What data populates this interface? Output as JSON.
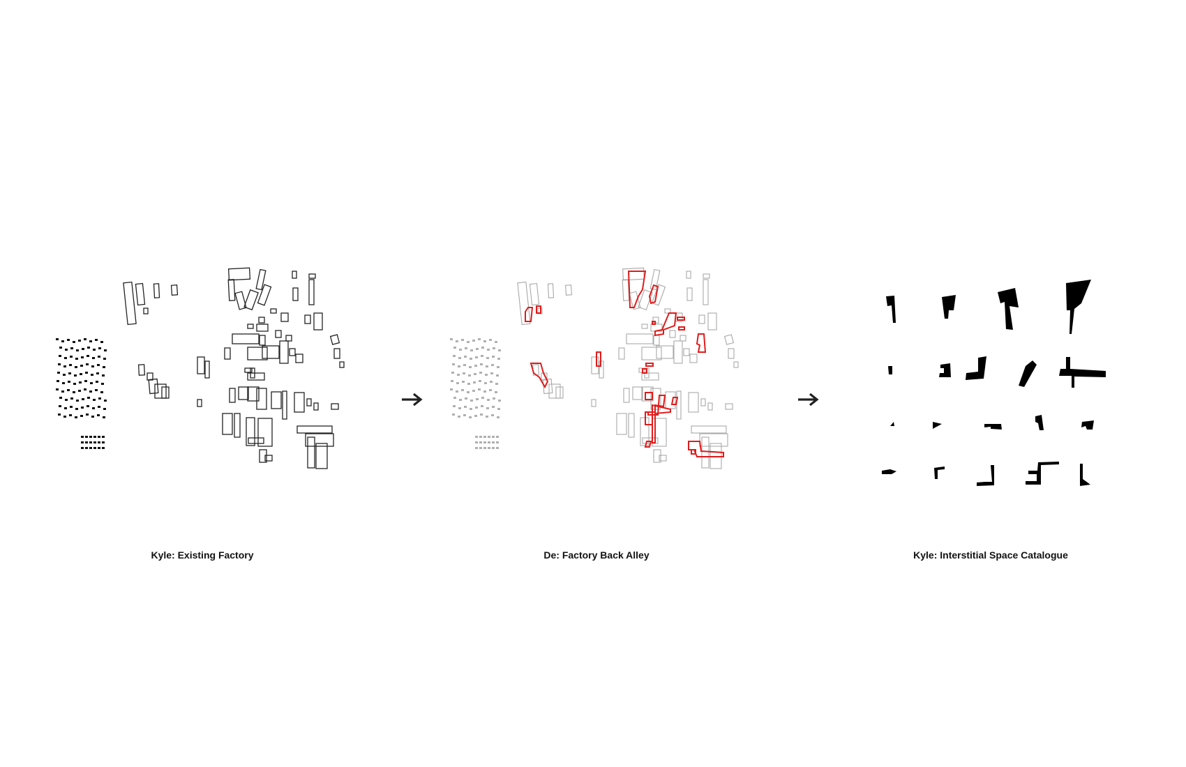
{
  "panels": [
    {
      "caption": "Kyle: Existing Factory",
      "icon": "building-outline-plan"
    },
    {
      "caption": "De: Factory Back Alley",
      "icon": "building-plan-with-red-alleys"
    },
    {
      "caption": "Kyle: Interstitial Space Catalogue",
      "icon": "black-shape-catalogue"
    }
  ],
  "arrows": [
    {
      "icon": "right-arrow-icon"
    },
    {
      "icon": "right-arrow-icon"
    }
  ],
  "colors": {
    "outline": "#222222",
    "faded_outline": "#a8a8a8",
    "highlight": "#e11b1b",
    "solid": "#000000"
  }
}
